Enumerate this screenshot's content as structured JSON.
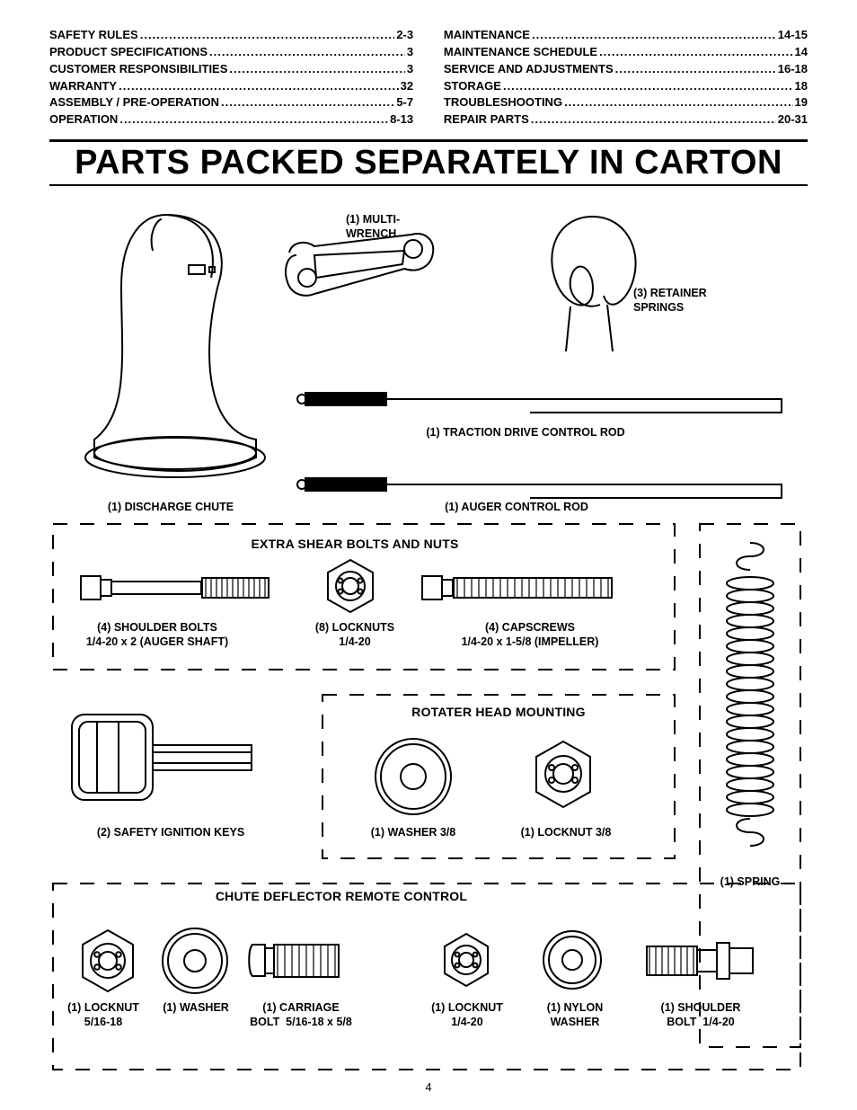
{
  "toc": {
    "left": [
      {
        "label": "SAFETY RULES",
        "page": "2-3"
      },
      {
        "label": "PRODUCT SPECIFICATIONS",
        "page": "3"
      },
      {
        "label": "CUSTOMER RESPONSIBILITIES",
        "page": "3"
      },
      {
        "label": "WARRANTY",
        "page": "32"
      },
      {
        "label": "ASSEMBLY / PRE-OPERATION",
        "page": "5-7"
      },
      {
        "label": "OPERATION",
        "page": "8-13"
      }
    ],
    "right": [
      {
        "label": "MAINTENANCE",
        "page": "14-15"
      },
      {
        "label": "MAINTENANCE SCHEDULE",
        "page": "14"
      },
      {
        "label": "SERVICE AND ADJUSTMENTS",
        "page": "16-18"
      },
      {
        "label": "STORAGE",
        "page": "18"
      },
      {
        "label": "TROUBLESHOOTING",
        "page": "19"
      },
      {
        "label": "REPAIR PARTS",
        "page": "20-31"
      }
    ]
  },
  "title": "PARTS PACKED SEPARATELY IN CARTON",
  "labels": {
    "multi_wrench": "(1) MULTI-\nWRENCH",
    "retainer_springs": "(3) RETAINER\nSPRINGS",
    "traction_rod": "(1) TRACTION DRIVE CONTROL ROD",
    "discharge_chute": "(1) DISCHARGE CHUTE",
    "auger_rod": "(1) AUGER CONTROL ROD",
    "extra_shear": "EXTRA SHEAR BOLTS AND NUTS",
    "shoulder_bolts": "(4) SHOULDER BOLTS\n1/4-20 x 2 (AUGER SHAFT)",
    "locknuts8": "(8) LOCKNUTS\n1/4-20",
    "capscrews": "(4) CAPSCREWS\n1/4-20 x 1-5/8 (IMPELLER)",
    "safety_keys": "(2) SAFETY IGNITION KEYS",
    "rotater_head": "ROTATER HEAD MOUNTING",
    "washer38": "(1) WASHER  3/8",
    "locknut38": "(1) LOCKNUT  3/8",
    "spring": "(1) SPRING",
    "chute_deflector": "CHUTE DEFLECTOR REMOTE CONTROL",
    "locknut516": "(1) LOCKNUT\n5/16-18",
    "washer1": "(1) WASHER",
    "carriage": "(1) CARRIAGE\nBOLT  5/16-18 x 5/8",
    "locknut1420": "(1) LOCKNUT\n1/4-20",
    "nylon_washer": "(1) NYLON\nWASHER",
    "shoulder_bolt": "(1) SHOULDER\nBOLT  1/4-20"
  },
  "page_number": "4",
  "style": {
    "dash_array": "14 12",
    "stroke": "#000000"
  }
}
